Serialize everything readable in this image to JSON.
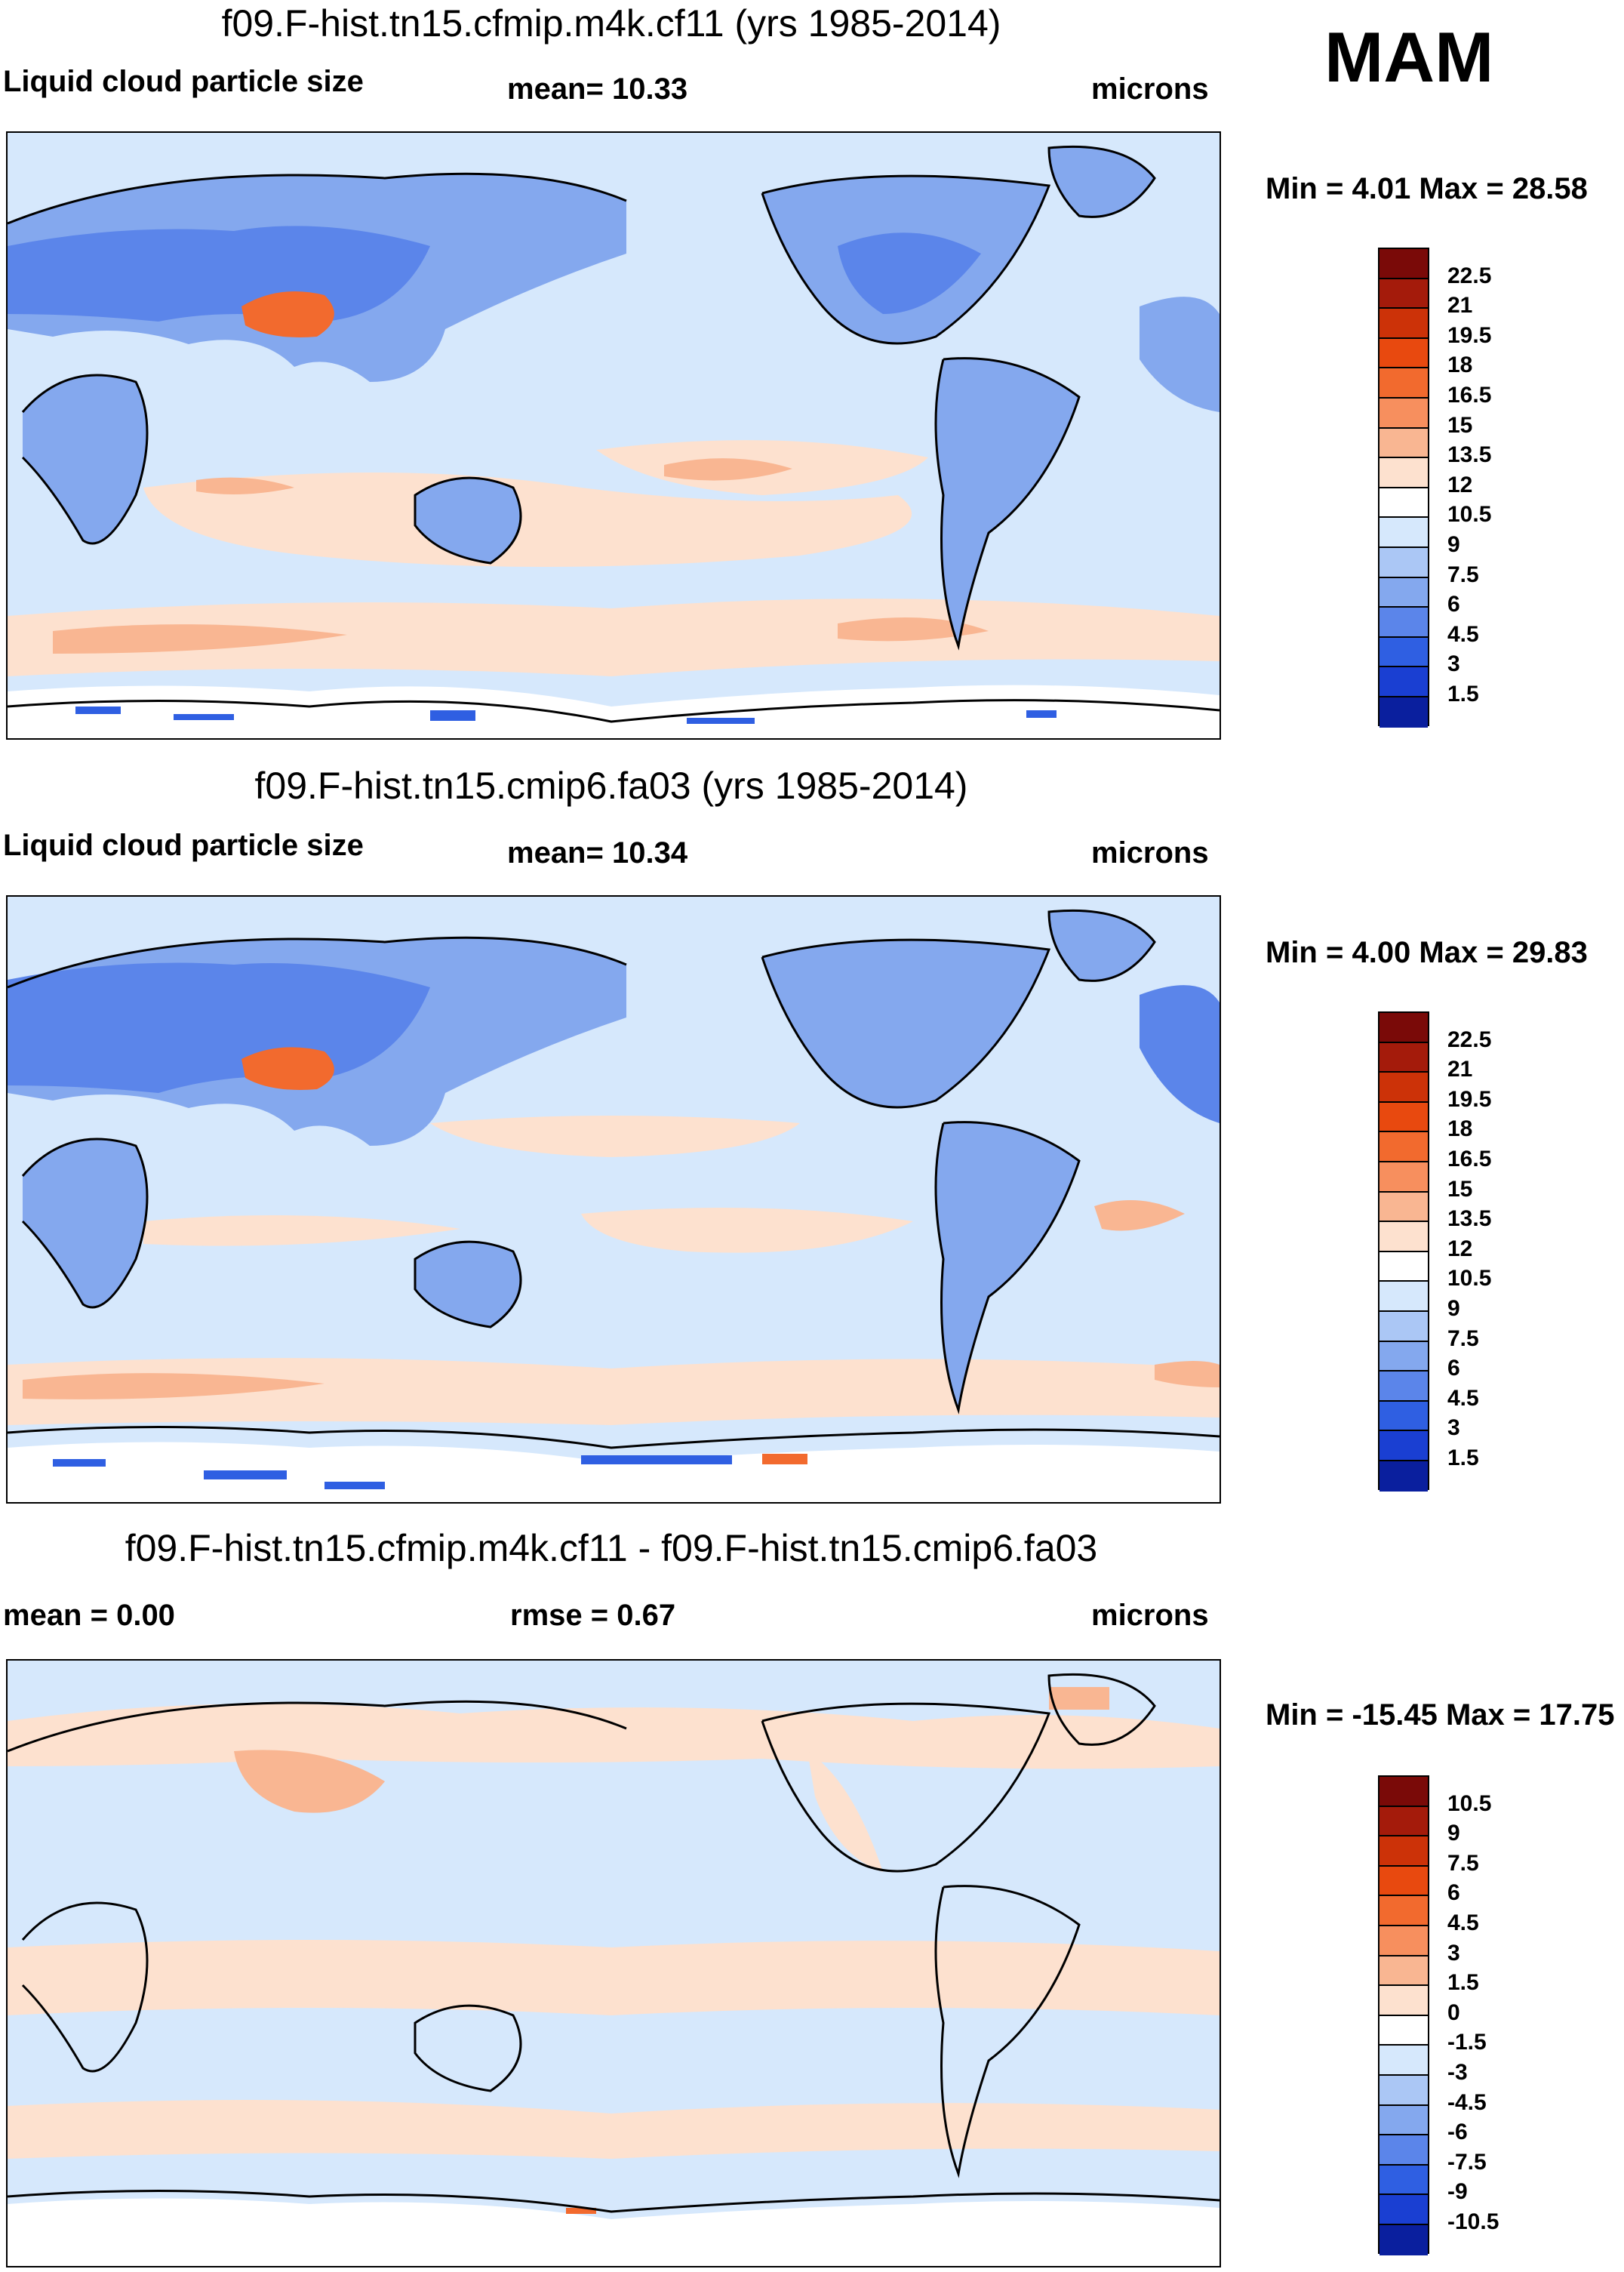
{
  "season": "MAM",
  "panels": [
    {
      "title": "f09.F-hist.tn15.cfmip.m4k.cf11 (yrs 1985-2014)",
      "left_label": "Liquid cloud particle size",
      "middle_label": "mean=  10.33",
      "units": "microns",
      "min_max": "Min =   4.01 Max =  28.58",
      "colorbar": {
        "labels": [
          "22.5",
          "21",
          "19.5",
          "18",
          "16.5",
          "15",
          "13.5",
          "12",
          "10.5",
          "9",
          "7.5",
          "6",
          "4.5",
          "3",
          "1.5"
        ],
        "colors": [
          "#7a0a08",
          "#a41b0b",
          "#cc3208",
          "#e8490f",
          "#f26a2e",
          "#f78f5e",
          "#f9b692",
          "#fde1cf",
          "#ffffff",
          "#d6e8fc",
          "#abc7f5",
          "#84a8ee",
          "#5b85ea",
          "#2f5fe2",
          "#1a3fd2",
          "#0a1f9e"
        ]
      },
      "map_colors": {
        "ocean_base": "#d6e8fc",
        "warm_band": "#fde1cf",
        "warm_core": "#f9b692",
        "land": "#84a8ee",
        "land_deep": "#5b85ea",
        "plateau": "#f26a2e",
        "antarctic": "#ffffff",
        "speckle": "#2f5fe2"
      }
    },
    {
      "title": "f09.F-hist.tn15.cmip6.fa03 (yrs 1985-2014)",
      "left_label": "Liquid cloud particle size",
      "middle_label": "mean=  10.34",
      "units": "microns",
      "min_max": "Min =   4.00 Max =  29.83",
      "colorbar": {
        "labels": [
          "22.5",
          "21",
          "19.5",
          "18",
          "16.5",
          "15",
          "13.5",
          "12",
          "10.5",
          "9",
          "7.5",
          "6",
          "4.5",
          "3",
          "1.5"
        ],
        "colors": [
          "#7a0a08",
          "#a41b0b",
          "#cc3208",
          "#e8490f",
          "#f26a2e",
          "#f78f5e",
          "#f9b692",
          "#fde1cf",
          "#ffffff",
          "#d6e8fc",
          "#abc7f5",
          "#84a8ee",
          "#5b85ea",
          "#2f5fe2",
          "#1a3fd2",
          "#0a1f9e"
        ]
      },
      "map_colors": {
        "ocean_base": "#d6e8fc",
        "warm_band": "#fde1cf",
        "warm_core": "#f9b692",
        "land": "#84a8ee",
        "land_deep": "#5b85ea",
        "plateau": "#f26a2e",
        "antarctic": "#ffffff",
        "speckle": "#2f5fe2"
      }
    },
    {
      "title": "f09.F-hist.tn15.cfmip.m4k.cf11 - f09.F-hist.tn15.cmip6.fa03",
      "left_label": "mean =   0.00",
      "middle_label": "rmse =   0.67",
      "units": "microns",
      "min_max": "Min = -15.45 Max =  17.75",
      "colorbar": {
        "labels": [
          "10.5",
          "9",
          "7.5",
          "6",
          "4.5",
          "3",
          "1.5",
          "0",
          "-1.5",
          "-3",
          "-4.5",
          "-6",
          "-7.5",
          "-9",
          "-10.5"
        ],
        "colors": [
          "#7a0a08",
          "#a41b0b",
          "#cc3208",
          "#e8490f",
          "#f26a2e",
          "#f78f5e",
          "#f9b692",
          "#fde1cf",
          "#ffffff",
          "#d6e8fc",
          "#abc7f5",
          "#84a8ee",
          "#5b85ea",
          "#2f5fe2",
          "#1a3fd2",
          "#0a1f9e"
        ]
      },
      "map_colors": {
        "ocean_base": "#d6e8fc",
        "warm_band": "#fde1cf",
        "warm_core": "#f9b692",
        "land": "#d6e8fc",
        "land_deep": "#d6e8fc",
        "plateau": "#f9b692",
        "antarctic": "#ffffff",
        "speckle": "#f26a2e"
      }
    }
  ]
}
